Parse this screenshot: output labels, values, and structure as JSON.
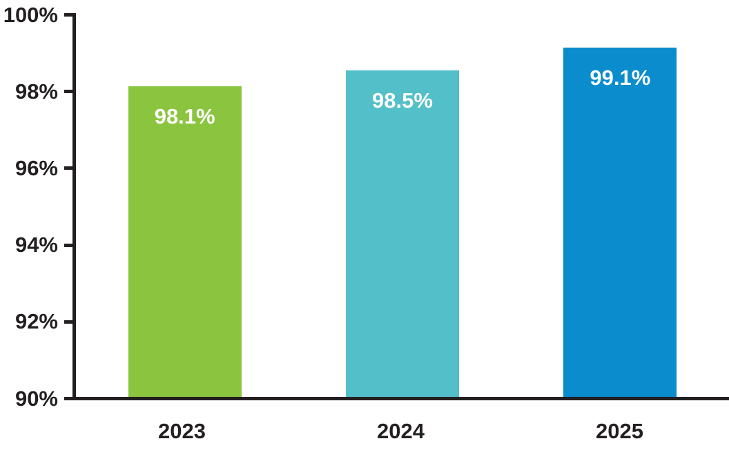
{
  "chart_data": {
    "type": "bar",
    "categories": [
      "2023",
      "2024",
      "2025"
    ],
    "values": [
      98.1,
      98.5,
      99.1
    ],
    "bar_labels": [
      "98.1%",
      "98.5%",
      "99.1%"
    ],
    "bar_colors": [
      "#8BC540",
      "#52BFC9",
      "#0A8CCD"
    ],
    "bar_label_color": "#FFFFFF",
    "title": "",
    "xlabel": "",
    "ylabel": "",
    "ylim": [
      90,
      100
    ],
    "y_ticks": [
      {
        "label": "100%",
        "value": 100
      },
      {
        "label": "98%",
        "value": 98
      },
      {
        "label": "96%",
        "value": 96
      },
      {
        "label": "94%",
        "value": 94
      },
      {
        "label": "92%",
        "value": 92
      },
      {
        "label": "90%",
        "value": 90
      }
    ],
    "grid": false,
    "legend": "none",
    "axis_color": "#231F20",
    "background": "#FFFFFF"
  }
}
